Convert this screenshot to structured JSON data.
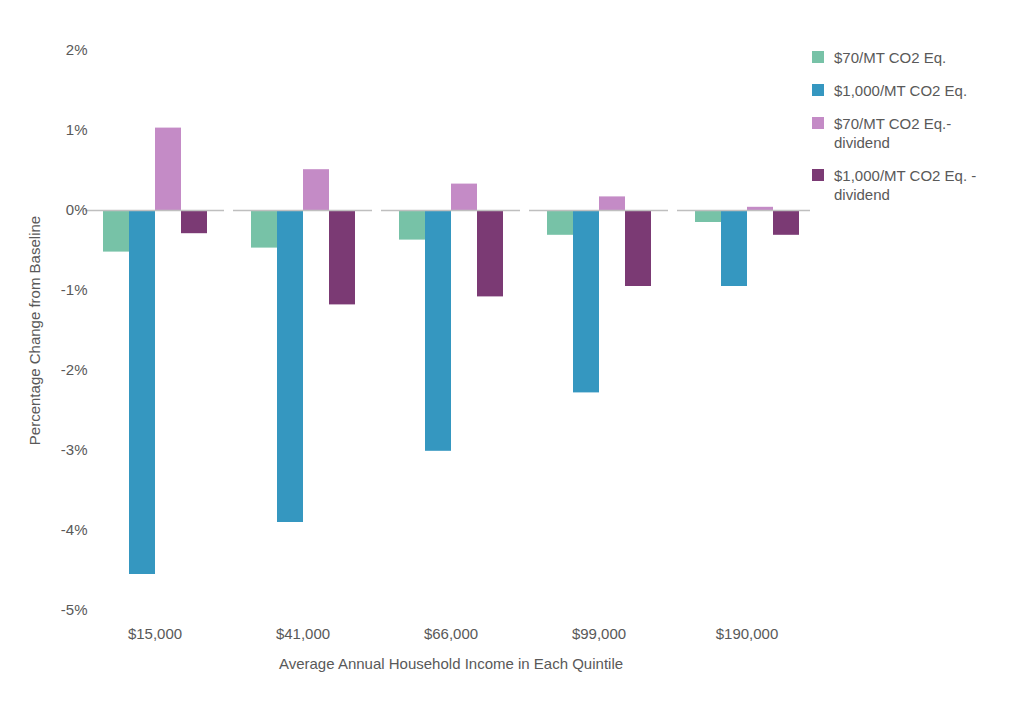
{
  "chart_data": {
    "type": "bar",
    "x_label": "Average Annual Household Income in Each Quintile",
    "y_label": "Percentage Change from Baseline",
    "categories": [
      "$15,000",
      "$41,000",
      "$66,000",
      "$99,000",
      "$190,000"
    ],
    "series": [
      {
        "name": "$70/MT CO2 Eq.",
        "color": "#77c2a7",
        "values": [
          -0.52,
          -0.47,
          -0.37,
          -0.31,
          -0.15
        ]
      },
      {
        "name": "$1,000/MT CO2 Eq.",
        "color": "#3597c0",
        "values": [
          -4.55,
          -3.9,
          -3.01,
          -2.28,
          -0.95
        ]
      },
      {
        "name": "$70/MT CO2 Eq.-dividend",
        "color": "#c48bc6",
        "values": [
          1.03,
          0.51,
          0.33,
          0.17,
          0.04
        ]
      },
      {
        "name": "$1,000/MT CO2 Eq. - dividend",
        "color": "#7b3a74",
        "values": [
          -0.29,
          -1.18,
          -1.08,
          -0.95,
          -0.31
        ]
      }
    ],
    "ylim": [
      -5,
      2
    ],
    "yticks": [
      {
        "value": -5,
        "label": "-5%"
      },
      {
        "value": -4,
        "label": "-4%"
      },
      {
        "value": -3,
        "label": "-3%"
      },
      {
        "value": -2,
        "label": "-2%"
      },
      {
        "value": -1,
        "label": "-1%"
      },
      {
        "value": 0,
        "label": "0%"
      },
      {
        "value": 1,
        "label": "1%"
      },
      {
        "value": 2,
        "label": "2%"
      }
    ],
    "grid": false,
    "legend": "right"
  }
}
